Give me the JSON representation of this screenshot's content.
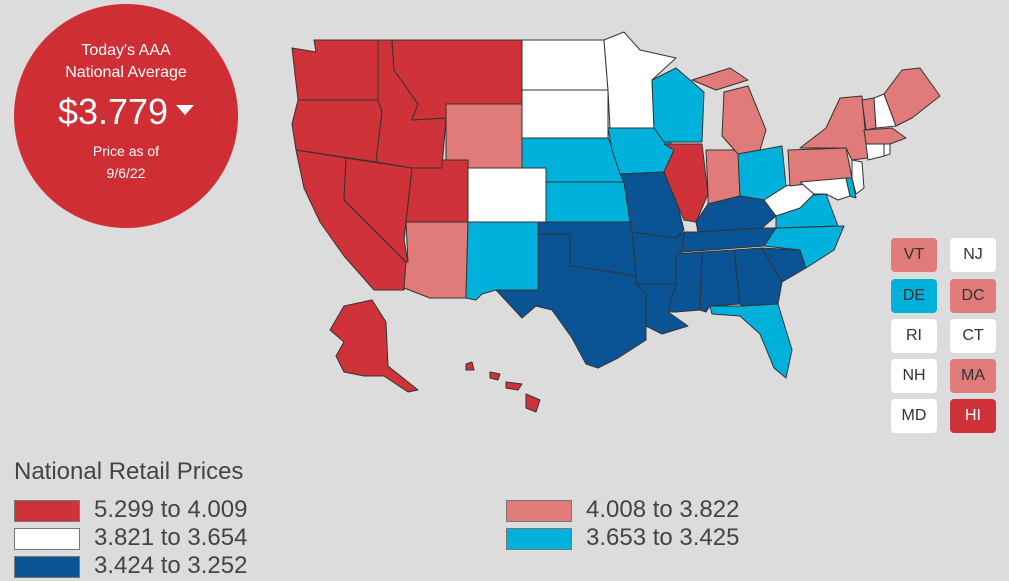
{
  "badge": {
    "line1": "Today's AAA",
    "line2": "National Average",
    "price": "$3.779",
    "as_of_label": "Price as of",
    "as_of_date": "9/6/22"
  },
  "colors": {
    "high": "#cf3339",
    "mid_high": "#e07b79",
    "mid": "#ffffff",
    "mid_low": "#00b1dc",
    "low": "#0a5495"
  },
  "legend": {
    "title": "National Retail Prices",
    "items": [
      {
        "label": "5.299 to 4.009",
        "color": "#cf3339"
      },
      {
        "label": "3.821 to 3.654",
        "color": "#ffffff"
      },
      {
        "label": "3.424 to 3.252",
        "color": "#0a5495"
      },
      {
        "label": "4.008 to 3.822",
        "color": "#e07b79"
      },
      {
        "label": "3.653 to 3.425",
        "color": "#00b1dc"
      }
    ]
  },
  "small_states": [
    {
      "abbr": "VT",
      "color": "#e07b79",
      "text_color": "#333333"
    },
    {
      "abbr": "NJ",
      "color": "#ffffff",
      "text_color": "#333333"
    },
    {
      "abbr": "DE",
      "color": "#00b1dc",
      "text_color": "#333333"
    },
    {
      "abbr": "DC",
      "color": "#e07b79",
      "text_color": "#333333"
    },
    {
      "abbr": "RI",
      "color": "#ffffff",
      "text_color": "#333333"
    },
    {
      "abbr": "CT",
      "color": "#ffffff",
      "text_color": "#333333"
    },
    {
      "abbr": "NH",
      "color": "#ffffff",
      "text_color": "#333333"
    },
    {
      "abbr": "MA",
      "color": "#e07b79",
      "text_color": "#333333"
    },
    {
      "abbr": "MD",
      "color": "#ffffff",
      "text_color": "#333333"
    },
    {
      "abbr": "HI",
      "color": "#cf3339",
      "text_color": "#ffffff"
    }
  ],
  "states": [
    {
      "name": "WA",
      "tier": "high"
    },
    {
      "name": "OR",
      "tier": "high"
    },
    {
      "name": "CA",
      "tier": "high"
    },
    {
      "name": "NV",
      "tier": "high"
    },
    {
      "name": "ID",
      "tier": "high"
    },
    {
      "name": "MT",
      "tier": "high"
    },
    {
      "name": "UT",
      "tier": "high"
    },
    {
      "name": "AK",
      "tier": "high"
    },
    {
      "name": "HI",
      "tier": "high"
    },
    {
      "name": "IL",
      "tier": "high"
    },
    {
      "name": "WY",
      "tier": "mid_high"
    },
    {
      "name": "AZ",
      "tier": "mid_high"
    },
    {
      "name": "MI",
      "tier": "mid_high"
    },
    {
      "name": "IN",
      "tier": "mid_high"
    },
    {
      "name": "PA",
      "tier": "mid_high"
    },
    {
      "name": "NY",
      "tier": "mid_high"
    },
    {
      "name": "ME",
      "tier": "mid_high"
    },
    {
      "name": "VT",
      "tier": "mid_high"
    },
    {
      "name": "MA",
      "tier": "mid_high"
    },
    {
      "name": "DC",
      "tier": "mid_high"
    },
    {
      "name": "ND",
      "tier": "mid"
    },
    {
      "name": "SD",
      "tier": "mid"
    },
    {
      "name": "MN",
      "tier": "mid"
    },
    {
      "name": "CO",
      "tier": "mid"
    },
    {
      "name": "WV",
      "tier": "mid"
    },
    {
      "name": "NJ",
      "tier": "mid"
    },
    {
      "name": "NH",
      "tier": "mid"
    },
    {
      "name": "CT",
      "tier": "mid"
    },
    {
      "name": "RI",
      "tier": "mid"
    },
    {
      "name": "MD",
      "tier": "mid"
    },
    {
      "name": "NE",
      "tier": "mid_low"
    },
    {
      "name": "KS",
      "tier": "mid_low"
    },
    {
      "name": "IA",
      "tier": "mid_low"
    },
    {
      "name": "WI",
      "tier": "mid_low"
    },
    {
      "name": "NM",
      "tier": "mid_low"
    },
    {
      "name": "OH",
      "tier": "mid_low"
    },
    {
      "name": "VA",
      "tier": "mid_low"
    },
    {
      "name": "NC",
      "tier": "mid_low"
    },
    {
      "name": "FL",
      "tier": "mid_low"
    },
    {
      "name": "DE",
      "tier": "mid_low"
    },
    {
      "name": "TX",
      "tier": "low"
    },
    {
      "name": "OK",
      "tier": "low"
    },
    {
      "name": "MO",
      "tier": "low"
    },
    {
      "name": "AR",
      "tier": "low"
    },
    {
      "name": "LA",
      "tier": "low"
    },
    {
      "name": "MS",
      "tier": "low"
    },
    {
      "name": "AL",
      "tier": "low"
    },
    {
      "name": "GA",
      "tier": "low"
    },
    {
      "name": "SC",
      "tier": "low"
    },
    {
      "name": "TN",
      "tier": "low"
    },
    {
      "name": "KY",
      "tier": "low"
    }
  ]
}
